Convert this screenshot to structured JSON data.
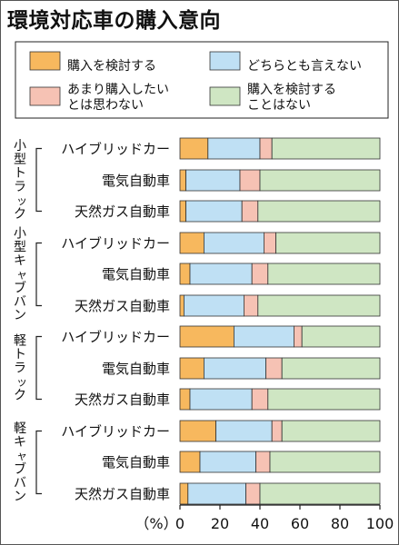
{
  "title": "環境対応車の購入意向",
  "chart_data": {
    "type": "bar",
    "orientation": "horizontal",
    "stacked": true,
    "title": "環境対応車の購入意向",
    "xlabel": "（%）",
    "xlim": [
      0,
      100
    ],
    "xticks": [
      "0",
      "20",
      "40",
      "60",
      "80",
      "100"
    ],
    "legend_position": "top",
    "series": [
      {
        "name": "購入を検討する",
        "color": "#f7b85e"
      },
      {
        "name": "どちらとも言えない",
        "color": "#bfe0f4"
      },
      {
        "name": "あまり購入したいとは思わない",
        "color": "#f6c2b4"
      },
      {
        "name": "購入を検討することはない",
        "color": "#cfe6c3"
      }
    ],
    "groups": [
      {
        "label": "小型トラック",
        "rows": [
          {
            "label": "ハイブリッドカー",
            "values": [
              14,
              26,
              6,
              54
            ]
          },
          {
            "label": "電気自動車",
            "values": [
              3,
              27,
              10,
              60
            ]
          },
          {
            "label": "天然ガス自動車",
            "values": [
              3,
              28,
              8,
              61
            ]
          }
        ]
      },
      {
        "label": "小型キャブバン",
        "rows": [
          {
            "label": "ハイブリッドカー",
            "values": [
              12,
              30,
              6,
              52
            ]
          },
          {
            "label": "電気自動車",
            "values": [
              5,
              31,
              8,
              56
            ]
          },
          {
            "label": "天然ガス自動車",
            "values": [
              2,
              30,
              7,
              61
            ]
          }
        ]
      },
      {
        "label": "軽トラック",
        "rows": [
          {
            "label": "ハイブリッドカー",
            "values": [
              27,
              30,
              4,
              39
            ]
          },
          {
            "label": "電気自動車",
            "values": [
              12,
              31,
              8,
              49
            ]
          },
          {
            "label": "天然ガス自動車",
            "values": [
              5,
              31,
              8,
              56
            ]
          }
        ]
      },
      {
        "label": "軽キャブバン",
        "rows": [
          {
            "label": "ハイブリッドカー",
            "values": [
              18,
              28,
              5,
              49
            ]
          },
          {
            "label": "電気自動車",
            "values": [
              10,
              28,
              7,
              55
            ]
          },
          {
            "label": "天然ガス自動車",
            "values": [
              4,
              29,
              7,
              60
            ]
          }
        ]
      }
    ]
  }
}
